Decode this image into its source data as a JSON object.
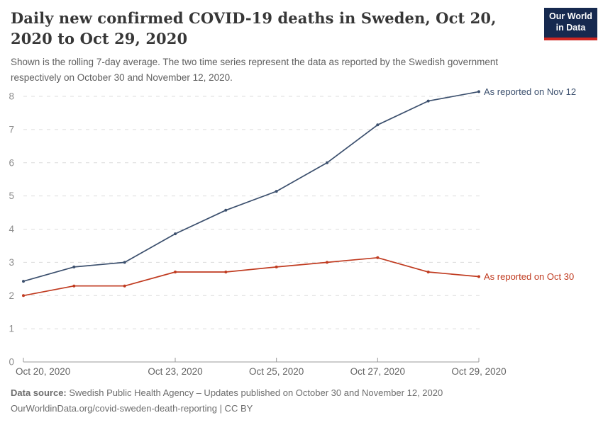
{
  "header": {
    "title": "Daily new confirmed COVID-19 deaths in Sweden, Oct 20, 2020 to Oct 29, 2020",
    "subtitle": "Shown is the rolling 7-day average. The two time series represent the data as reported by the Swedish government respectively on October 30 and November 12, 2020.",
    "logo": {
      "line1": "Our World",
      "line2": "in Data",
      "bg_color": "#16294f",
      "accent_color": "#cf2722"
    }
  },
  "chart_data": {
    "type": "line",
    "title": "Daily new confirmed COVID-19 deaths in Sweden, Oct 20, 2020 to Oct 29, 2020",
    "x": [
      "Oct 20, 2020",
      "Oct 21, 2020",
      "Oct 22, 2020",
      "Oct 23, 2020",
      "Oct 24, 2020",
      "Oct 25, 2020",
      "Oct 26, 2020",
      "Oct 27, 2020",
      "Oct 28, 2020",
      "Oct 29, 2020"
    ],
    "series": [
      {
        "name": "As reported on Nov 12",
        "color": "#3c506e",
        "values": [
          2.43,
          2.86,
          3.0,
          3.86,
          4.57,
          5.14,
          6.0,
          7.14,
          7.86,
          8.14
        ]
      },
      {
        "name": "As reported on Oct 30",
        "color": "#c03b20",
        "values": [
          2.0,
          2.29,
          2.29,
          2.71,
          2.71,
          2.86,
          3.0,
          3.14,
          2.71,
          2.57
        ]
      }
    ],
    "ylim": [
      0,
      8
    ],
    "yticks": [
      0,
      1,
      2,
      3,
      4,
      5,
      6,
      7,
      8
    ],
    "xticks": [
      {
        "index": 0,
        "label": "Oct 20, 2020"
      },
      {
        "index": 3,
        "label": "Oct 23, 2020"
      },
      {
        "index": 5,
        "label": "Oct 25, 2020"
      },
      {
        "index": 7,
        "label": "Oct 27, 2020"
      },
      {
        "index": 9,
        "label": "Oct 29, 2020"
      }
    ],
    "grid": "horizontal dashed",
    "legend_position": "end-of-line labels"
  },
  "footer": {
    "source_label": "Data source:",
    "source_text": "Swedish Public Health Agency – Updates published on October 30 and November 12, 2020",
    "link_line": "OurWorldinData.org/covid-sweden-death-reporting | CC BY"
  }
}
